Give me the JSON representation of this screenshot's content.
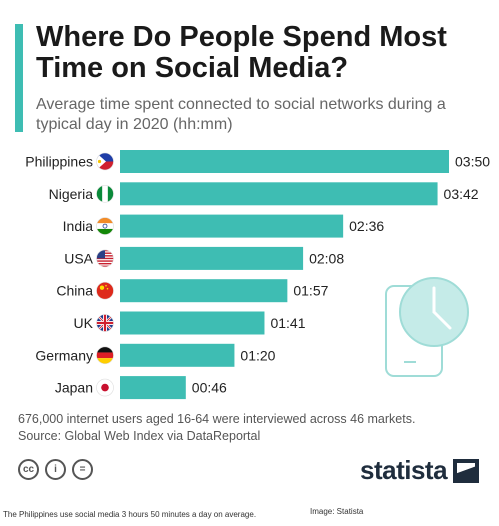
{
  "title": "Where Do People Spend Most Time on Social Media?",
  "subtitle": "Average time spent connected to social networks during a typical day in 2020 (hh:mm)",
  "chart_data": {
    "type": "bar",
    "orientation": "horizontal",
    "categories": [
      "Philippines",
      "Nigeria",
      "India",
      "USA",
      "China",
      "UK",
      "Germany",
      "Japan"
    ],
    "labels": [
      "03:50",
      "03:42",
      "02:36",
      "02:08",
      "01:57",
      "01:41",
      "01:20",
      "00:46"
    ],
    "values": [
      230,
      222,
      156,
      128,
      117,
      101,
      80,
      46
    ],
    "value_unit": "minutes",
    "bar_color": "#3ebdb3",
    "flags": [
      "philippines-flag-icon",
      "nigeria-flag-icon",
      "india-flag-icon",
      "usa-flag-icon",
      "china-flag-icon",
      "uk-flag-icon",
      "germany-flag-icon",
      "japan-flag-icon"
    ]
  },
  "notes": {
    "survey": "676,000 internet users aged 16-64 were interviewed across 46 markets.",
    "source": "Source: Global Web Index via DataReportal"
  },
  "brand": "statista",
  "license_icons": [
    "cc-icon",
    "attribution-icon",
    "no-derivatives-icon"
  ],
  "caption": "The Philippines use social media 3 hours 50 minutes a day on average.",
  "credit": "Image: Statista"
}
